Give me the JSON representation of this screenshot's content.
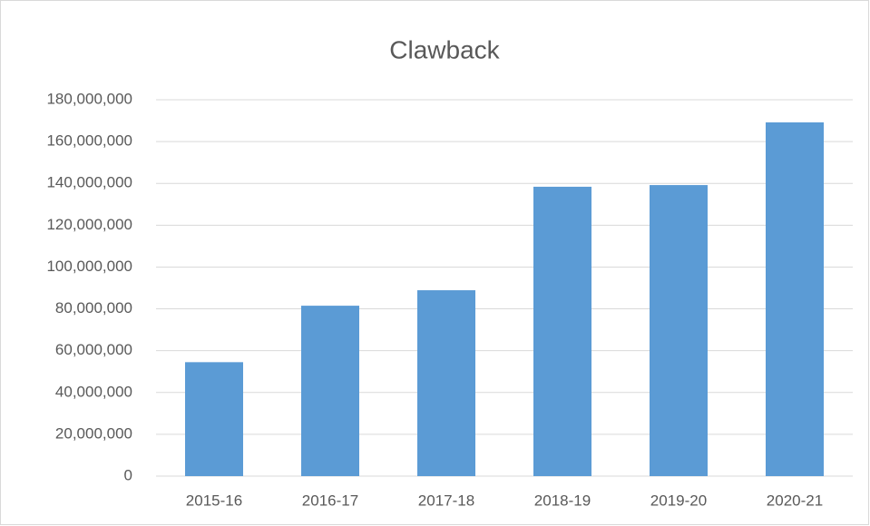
{
  "chart_data": {
    "type": "bar",
    "title": "Clawback",
    "categories": [
      "2015-16",
      "2016-17",
      "2017-18",
      "2018-19",
      "2019-20",
      "2020-21"
    ],
    "values": [
      54500000,
      81500000,
      88900000,
      138400000,
      139200000,
      169200000
    ],
    "color": "#5b9bd5",
    "ylim": [
      0,
      180000000
    ],
    "yticks": [
      0,
      {
        "value": 20000000,
        "label": "20,000,000"
      },
      {
        "value": 40000000,
        "label": "40,000,000"
      },
      {
        "value": 60000000,
        "label": "60,000,000"
      },
      {
        "value": 80000000,
        "label": "80,000,000"
      },
      {
        "value": 100000000,
        "label": "100,000,000"
      },
      {
        "value": 120000000,
        "label": "120,000,000"
      },
      {
        "value": 140000000,
        "label": "140,000,000"
      },
      {
        "value": 160000000,
        "label": "160,000,000"
      },
      {
        "value": 180000000,
        "label": "180,000,000"
      }
    ],
    "grid": true
  }
}
